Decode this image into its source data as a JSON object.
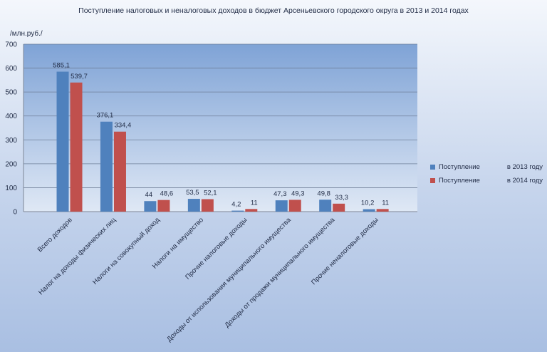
{
  "chart_data": {
    "type": "bar",
    "title": "Поступление налоговых и неналоговых доходов в бюджет Арсеньевского городского округа в 2013 и 2014 годах",
    "ylabel": "/млн.руб./",
    "ylim": [
      0,
      700
    ],
    "yticks": [
      0,
      100,
      200,
      300,
      400,
      500,
      600,
      700
    ],
    "grid": true,
    "legend_position": "right",
    "categories": [
      "Всего доходов",
      "Налог на доходы  физических лиц",
      "Налоги на совокупный  доход",
      "Налоги на имущество",
      "Прочие налоговые доходы",
      "Доходы от использования  муниципального имущества",
      "Доходы от продажи муниципального имущества",
      "Прочие неналоговые доходы"
    ],
    "series": [
      {
        "name": "Поступление",
        "year_label": "в 2013 году",
        "color": "#4f81bd",
        "values": [
          585.1,
          376.1,
          44,
          53.5,
          4.2,
          47.3,
          49.8,
          10.2
        ],
        "labels": [
          "585,1",
          "376,1",
          "44",
          "53,5",
          "4,2",
          "47,3",
          "49,8",
          "10,2"
        ]
      },
      {
        "name": "Поступление",
        "year_label": "в 2014 году",
        "color": "#c0504d",
        "values": [
          539.7,
          334.4,
          48.6,
          52.1,
          11,
          49.3,
          33.3,
          11
        ],
        "labels": [
          "539,7",
          "334,4",
          "48,6",
          "52,1",
          "11",
          "49,3",
          "33,3",
          "11"
        ]
      }
    ]
  }
}
